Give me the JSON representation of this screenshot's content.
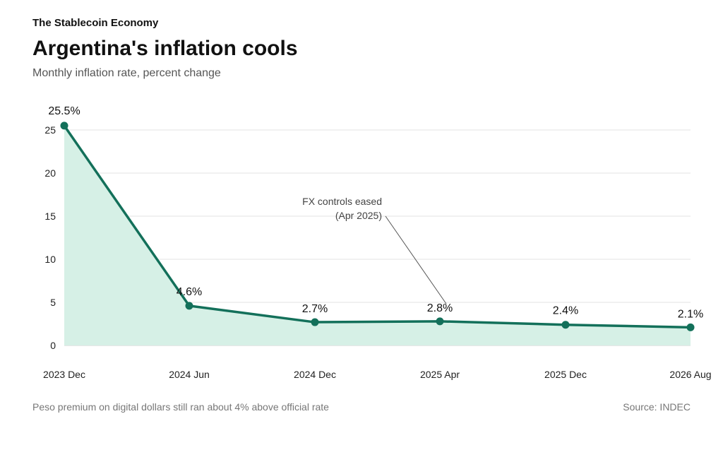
{
  "header": {
    "kicker": "The Stablecoin Economy",
    "title": "Argentina's inflation cools",
    "subtitle": "Monthly inflation rate, percent change"
  },
  "footer": {
    "note": "Peso premium on digital dollars still ran about 4% above official rate",
    "source": "Source: INDEC"
  },
  "chart_data": {
    "type": "line",
    "title": "Argentina's inflation cools",
    "subtitle": "Monthly inflation rate, percent change",
    "categories": [
      "2023 Dec",
      "2024 Jun",
      "2024 Dec",
      "2025 Apr",
      "2025 Dec",
      "2026 Aug"
    ],
    "values": [
      25.5,
      4.6,
      2.7,
      2.8,
      2.4,
      2.1
    ],
    "data_labels": [
      "25.5%",
      "4.6%",
      "2.7%",
      "2.8%",
      "2.4%",
      "2.1%"
    ],
    "yticks": [
      0,
      5,
      10,
      15,
      20,
      25
    ],
    "ylim": [
      0,
      25
    ],
    "grid": true,
    "area_fill": true,
    "colors": {
      "line": "#13705a",
      "area": "#d6f0e6",
      "grid": "#e3e3e3",
      "annotation": "#555555"
    },
    "annotation": {
      "lines": [
        "FX controls eased",
        "(Apr 2025)"
      ],
      "target_category": "2025 Apr"
    }
  }
}
